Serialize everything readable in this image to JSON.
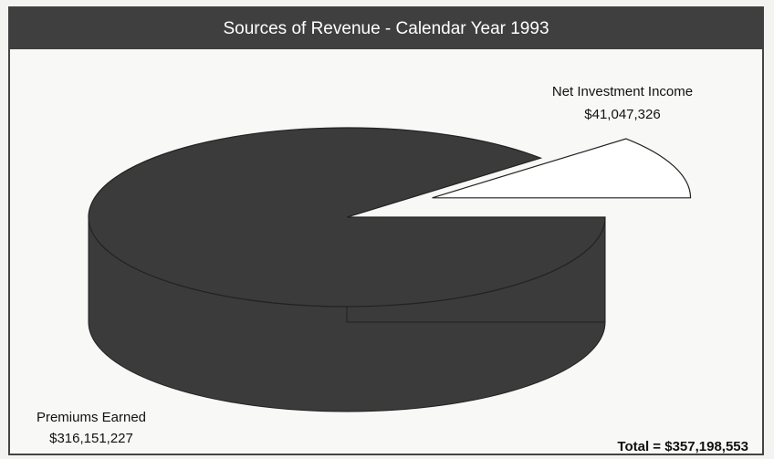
{
  "chart_data": {
    "type": "pie",
    "title": "Sources of Revenue - Calendar Year 1993",
    "categories": [
      "Premiums Earned",
      "Net Investment Income"
    ],
    "values": [
      316151227,
      41047326
    ],
    "value_labels": [
      "$316,151,227",
      "$41,047,326"
    ],
    "colors": [
      "#3b3b3b",
      "#ffffff"
    ],
    "annotation": "Total  =  $357,198,553"
  }
}
